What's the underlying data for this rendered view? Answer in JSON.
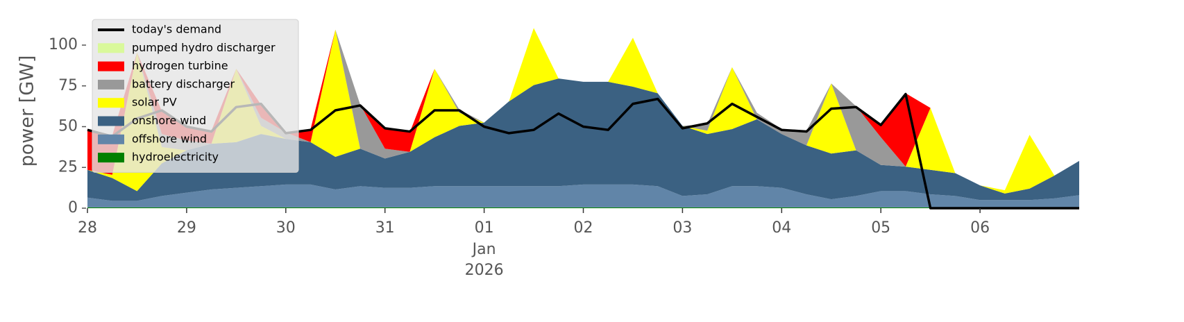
{
  "chart_data": {
    "type": "area",
    "ylabel": "power [GW]",
    "x": [
      28,
      28.25,
      28.5,
      28.75,
      29,
      29.25,
      29.5,
      29.75,
      30,
      30.25,
      30.5,
      30.75,
      31,
      31.25,
      31.5,
      31.75,
      32,
      32.25,
      32.5,
      32.75,
      33,
      33.25,
      33.5,
      33.75,
      34,
      34.25,
      34.5,
      34.75,
      35,
      35.25,
      35.5,
      35.75,
      36,
      36.25,
      36.5,
      36.75,
      37,
      37.25,
      37.5,
      37.75,
      38
    ],
    "xlim": [
      28,
      38
    ],
    "xticks": [
      {
        "value": 28,
        "label": "28"
      },
      {
        "value": 29,
        "label": "29"
      },
      {
        "value": 30,
        "label": "30"
      },
      {
        "value": 31,
        "label": "31"
      },
      {
        "value": 32,
        "label": "01",
        "sublabels": [
          "Jan",
          "2026"
        ]
      },
      {
        "value": 33,
        "label": "02"
      },
      {
        "value": 34,
        "label": "03"
      },
      {
        "value": 35,
        "label": "04"
      },
      {
        "value": 36,
        "label": "05"
      },
      {
        "value": 37,
        "label": "06"
      }
    ],
    "ylim": [
      0,
      120
    ],
    "yticks": [
      0,
      25,
      50,
      75,
      100
    ],
    "legend": "upper left",
    "series": [
      {
        "name": "hydroelectricity",
        "color": "#008000",
        "values": [
          0.5,
          0.5,
          0.5,
          0.5,
          0.5,
          0.5,
          0.5,
          0.5,
          0.5,
          0.5,
          0.5,
          0.5,
          0.5,
          0.5,
          0.5,
          0.5,
          0.5,
          0.5,
          0.5,
          0.5,
          0.5,
          0.5,
          0.5,
          0.5,
          0.5,
          0.5,
          0.5,
          0.5,
          0.5,
          0.5,
          0.5,
          0.5,
          0.5,
          0.5,
          0.5,
          0.5,
          0,
          0,
          0,
          0,
          0
        ]
      },
      {
        "name": "offshore wind",
        "color": "#6185a8",
        "values": [
          6,
          4,
          4,
          7,
          9,
          11,
          12,
          13,
          14,
          14,
          11,
          13,
          12,
          12,
          13,
          13,
          13,
          13,
          13,
          13,
          14,
          14,
          14,
          13,
          7,
          8,
          13,
          13,
          12,
          8,
          5,
          7,
          10,
          10,
          8,
          7,
          5,
          5,
          5,
          6,
          8
        ]
      },
      {
        "name": "onshore wind",
        "color": "#3b6182",
        "values": [
          17,
          14,
          6,
          20,
          26,
          28,
          28,
          32,
          28,
          26,
          20,
          23,
          18,
          22,
          30,
          37,
          39,
          52,
          62,
          66,
          63,
          63,
          60,
          57,
          43,
          37,
          35,
          41,
          33,
          30,
          28,
          28,
          16,
          15,
          15,
          14,
          9,
          4,
          7,
          14,
          21
        ]
      },
      {
        "name": "solar PV",
        "color": "#ffff00",
        "values": [
          0,
          2,
          85,
          10,
          0,
          0,
          45,
          5,
          0,
          0,
          78,
          0,
          0,
          0,
          42,
          8,
          0,
          0,
          35,
          0,
          0,
          0,
          30,
          0,
          0,
          2,
          38,
          0,
          0,
          0,
          43,
          0,
          0,
          0,
          38,
          0,
          0,
          2,
          33,
          0,
          0
        ]
      },
      {
        "name": "battery discharger",
        "color": "#999999",
        "values": [
          0,
          0,
          0,
          8,
          6,
          0,
          0,
          5,
          4,
          0,
          0,
          27,
          6,
          0,
          0,
          2,
          0,
          0,
          0,
          0,
          0,
          0,
          0,
          0,
          0,
          4,
          0,
          4,
          3,
          9,
          0,
          27,
          17,
          0,
          0,
          0,
          0,
          0,
          0,
          0,
          0
        ]
      },
      {
        "name": "hydrogen turbine",
        "color": "#ff0000",
        "values": [
          25,
          24,
          0,
          14,
          8,
          8,
          0,
          8,
          0,
          8,
          0,
          0,
          12,
          12,
          0,
          0,
          0,
          0,
          0,
          0,
          0,
          0,
          0,
          0,
          0,
          0,
          0,
          0,
          0,
          0,
          0,
          0,
          8,
          45,
          0,
          0,
          0,
          0,
          0,
          0,
          0
        ]
      },
      {
        "name": "pumped hydro discharger",
        "color": "#d9f99b",
        "values": [
          0,
          0,
          0,
          0,
          0,
          0,
          0,
          0,
          0,
          0,
          0,
          0,
          0,
          0,
          0,
          0,
          0,
          0,
          0,
          0,
          0,
          0,
          0,
          0,
          0,
          0,
          0,
          0,
          0,
          0,
          0,
          0,
          0,
          0,
          0,
          0,
          0,
          0,
          0,
          0,
          0
        ]
      }
    ],
    "demand": {
      "name": "today's demand",
      "color": "#000000",
      "values": [
        48,
        44,
        55,
        60,
        50,
        47,
        62,
        64,
        46,
        48,
        60,
        63,
        49,
        47,
        60,
        60,
        50,
        46,
        48,
        58,
        50,
        48,
        64,
        67,
        49,
        52,
        64,
        56,
        48,
        47,
        61,
        62,
        51,
        70,
        0,
        0,
        0,
        0,
        0,
        0,
        0
      ]
    }
  }
}
